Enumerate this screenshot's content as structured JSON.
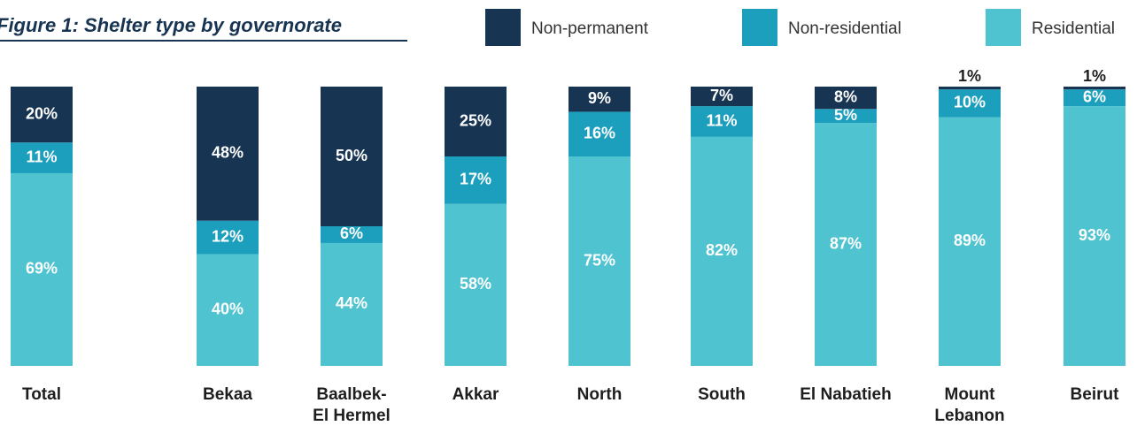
{
  "chart_data": {
    "type": "stacked_bar_100",
    "title": "Figure 1: Shelter type by governorate",
    "categories": [
      "Total",
      "Bekaa",
      "Baalbek-\nEl Hermel",
      "Akkar",
      "North",
      "South",
      "El Nabatieh",
      "Mount\nLebanon",
      "Beirut"
    ],
    "series": [
      {
        "name": "Non-permanent",
        "color": "#173452",
        "values": [
          20,
          48,
          50,
          25,
          9,
          7,
          8,
          1,
          1
        ],
        "value_labels": [
          "20%",
          "48%",
          "50%",
          "25%",
          "9%",
          "7%",
          "8%",
          "1%",
          "1%"
        ]
      },
      {
        "name": "Non-residential",
        "color": "#1c9fbd",
        "values": [
          11,
          12,
          6,
          17,
          16,
          11,
          5,
          10,
          6
        ],
        "value_labels": [
          "11%",
          "12%",
          "6%",
          "17%",
          "16%",
          "11%",
          "5%",
          "10%",
          "6%"
        ]
      },
      {
        "name": "Residential",
        "color": "#4fc3d0",
        "values": [
          69,
          40,
          44,
          58,
          75,
          82,
          87,
          89,
          93
        ],
        "value_labels": [
          "69%",
          "40%",
          "44%",
          "58%",
          "75%",
          "82%",
          "87%",
          "89%",
          "93%"
        ]
      }
    ],
    "legend": "top-right"
  }
}
